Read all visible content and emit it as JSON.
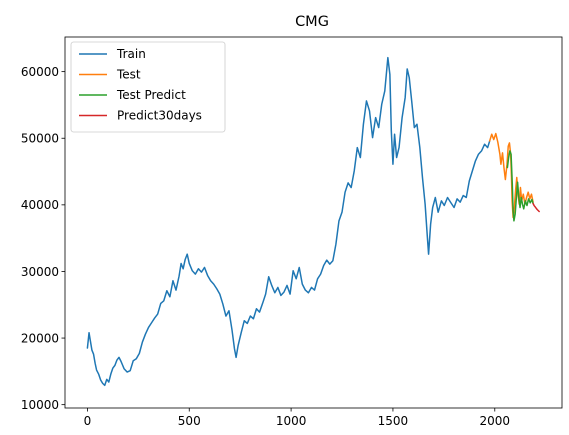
{
  "chart_data": {
    "type": "line",
    "title": "CMG",
    "xlabel": "",
    "ylabel": "",
    "xlim": [
      -110,
      2330
    ],
    "ylim": [
      9500,
      65200
    ],
    "xticks": [
      0,
      500,
      1000,
      1500,
      2000
    ],
    "xtick_labels": [
      "0",
      "500",
      "1000",
      "1500",
      "2000"
    ],
    "yticks": [
      10000,
      20000,
      30000,
      40000,
      50000,
      60000
    ],
    "ytick_labels": [
      "10000",
      "20000",
      "30000",
      "40000",
      "50000",
      "60000"
    ],
    "grid": false,
    "legend": {
      "position": "top-left"
    },
    "series": [
      {
        "name": "Train",
        "color": "#1f77b4",
        "points": [
          [
            0,
            18500
          ],
          [
            8,
            20800
          ],
          [
            15,
            19500
          ],
          [
            22,
            18200
          ],
          [
            30,
            17600
          ],
          [
            38,
            16200
          ],
          [
            45,
            15200
          ],
          [
            55,
            14600
          ],
          [
            65,
            13700
          ],
          [
            75,
            13200
          ],
          [
            85,
            12900
          ],
          [
            95,
            13800
          ],
          [
            105,
            13400
          ],
          [
            115,
            14600
          ],
          [
            125,
            15500
          ],
          [
            135,
            15900
          ],
          [
            145,
            16700
          ],
          [
            155,
            17100
          ],
          [
            165,
            16500
          ],
          [
            180,
            15400
          ],
          [
            195,
            14900
          ],
          [
            210,
            15100
          ],
          [
            225,
            16600
          ],
          [
            240,
            16900
          ],
          [
            255,
            17700
          ],
          [
            270,
            19400
          ],
          [
            285,
            20600
          ],
          [
            300,
            21600
          ],
          [
            315,
            22300
          ],
          [
            330,
            23000
          ],
          [
            345,
            23600
          ],
          [
            360,
            25200
          ],
          [
            375,
            25600
          ],
          [
            390,
            27100
          ],
          [
            405,
            26200
          ],
          [
            420,
            28600
          ],
          [
            435,
            27200
          ],
          [
            450,
            29300
          ],
          [
            460,
            31200
          ],
          [
            470,
            30400
          ],
          [
            480,
            31800
          ],
          [
            490,
            32600
          ],
          [
            500,
            31200
          ],
          [
            515,
            30100
          ],
          [
            530,
            29600
          ],
          [
            545,
            30400
          ],
          [
            560,
            29900
          ],
          [
            575,
            30600
          ],
          [
            590,
            29400
          ],
          [
            605,
            28600
          ],
          [
            620,
            28100
          ],
          [
            635,
            27400
          ],
          [
            650,
            26600
          ],
          [
            665,
            25100
          ],
          [
            680,
            23300
          ],
          [
            695,
            24100
          ],
          [
            710,
            21200
          ],
          [
            722,
            18400
          ],
          [
            730,
            17100
          ],
          [
            740,
            18900
          ],
          [
            755,
            20800
          ],
          [
            770,
            22600
          ],
          [
            785,
            22200
          ],
          [
            800,
            23300
          ],
          [
            815,
            22900
          ],
          [
            830,
            24400
          ],
          [
            845,
            23900
          ],
          [
            860,
            25200
          ],
          [
            875,
            26600
          ],
          [
            890,
            29200
          ],
          [
            905,
            27900
          ],
          [
            920,
            26800
          ],
          [
            935,
            27600
          ],
          [
            950,
            26400
          ],
          [
            965,
            26900
          ],
          [
            980,
            27900
          ],
          [
            995,
            26600
          ],
          [
            1010,
            30100
          ],
          [
            1025,
            28900
          ],
          [
            1040,
            30600
          ],
          [
            1055,
            28100
          ],
          [
            1070,
            27200
          ],
          [
            1085,
            26800
          ],
          [
            1100,
            27600
          ],
          [
            1115,
            27200
          ],
          [
            1130,
            28900
          ],
          [
            1145,
            29600
          ],
          [
            1160,
            30900
          ],
          [
            1175,
            31700
          ],
          [
            1190,
            31100
          ],
          [
            1205,
            31600
          ],
          [
            1220,
            34100
          ],
          [
            1235,
            37600
          ],
          [
            1250,
            38900
          ],
          [
            1265,
            41900
          ],
          [
            1280,
            43300
          ],
          [
            1295,
            42600
          ],
          [
            1310,
            45100
          ],
          [
            1325,
            48600
          ],
          [
            1340,
            47100
          ],
          [
            1355,
            52100
          ],
          [
            1370,
            55600
          ],
          [
            1385,
            54100
          ],
          [
            1400,
            50100
          ],
          [
            1415,
            53100
          ],
          [
            1430,
            51600
          ],
          [
            1445,
            55100
          ],
          [
            1460,
            57100
          ],
          [
            1475,
            62100
          ],
          [
            1485,
            59600
          ],
          [
            1492,
            51100
          ],
          [
            1500,
            46100
          ],
          [
            1508,
            50600
          ],
          [
            1518,
            47100
          ],
          [
            1530,
            48600
          ],
          [
            1545,
            53100
          ],
          [
            1560,
            56100
          ],
          [
            1570,
            60400
          ],
          [
            1580,
            59100
          ],
          [
            1592,
            55600
          ],
          [
            1605,
            51600
          ],
          [
            1618,
            52100
          ],
          [
            1632,
            48600
          ],
          [
            1645,
            44100
          ],
          [
            1658,
            40100
          ],
          [
            1668,
            35600
          ],
          [
            1675,
            32600
          ],
          [
            1685,
            37100
          ],
          [
            1695,
            39600
          ],
          [
            1708,
            41100
          ],
          [
            1722,
            38900
          ],
          [
            1738,
            40600
          ],
          [
            1752,
            39900
          ],
          [
            1768,
            41100
          ],
          [
            1785,
            40300
          ],
          [
            1800,
            39600
          ],
          [
            1815,
            40900
          ],
          [
            1830,
            40400
          ],
          [
            1845,
            41400
          ],
          [
            1860,
            41100
          ],
          [
            1875,
            43600
          ],
          [
            1890,
            45100
          ],
          [
            1905,
            46600
          ],
          [
            1920,
            47600
          ],
          [
            1935,
            48100
          ],
          [
            1950,
            49100
          ],
          [
            1965,
            48600
          ],
          [
            1975,
            49600
          ]
        ]
      },
      {
        "name": "Test",
        "color": "#ff7f0e",
        "points": [
          [
            1975,
            49600
          ],
          [
            1985,
            50600
          ],
          [
            1995,
            49800
          ],
          [
            2005,
            50700
          ],
          [
            2015,
            49400
          ],
          [
            2025,
            47600
          ],
          [
            2030,
            46100
          ],
          [
            2038,
            47800
          ],
          [
            2045,
            45600
          ],
          [
            2052,
            43800
          ],
          [
            2060,
            46100
          ],
          [
            2066,
            48800
          ],
          [
            2072,
            49300
          ],
          [
            2078,
            47600
          ],
          [
            2082,
            44100
          ],
          [
            2085,
            40600
          ],
          [
            2090,
            38100
          ],
          [
            2096,
            39600
          ],
          [
            2102,
            42100
          ],
          [
            2108,
            44100
          ],
          [
            2114,
            41600
          ],
          [
            2120,
            40100
          ],
          [
            2126,
            42600
          ],
          [
            2132,
            40600
          ],
          [
            2140,
            41600
          ],
          [
            2148,
            40100
          ],
          [
            2156,
            41100
          ],
          [
            2164,
            41900
          ],
          [
            2172,
            40900
          ],
          [
            2180,
            41600
          ],
          [
            2188,
            40400
          ]
        ]
      },
      {
        "name": "Test Predict",
        "color": "#2ca02c",
        "points": [
          [
            2062,
            45600
          ],
          [
            2068,
            47100
          ],
          [
            2074,
            48100
          ],
          [
            2080,
            47600
          ],
          [
            2086,
            43100
          ],
          [
            2090,
            39100
          ],
          [
            2094,
            37600
          ],
          [
            2100,
            38600
          ],
          [
            2106,
            41100
          ],
          [
            2112,
            43400
          ],
          [
            2118,
            41100
          ],
          [
            2124,
            39600
          ],
          [
            2130,
            41100
          ],
          [
            2136,
            40100
          ],
          [
            2142,
            39400
          ],
          [
            2150,
            40600
          ],
          [
            2158,
            39900
          ],
          [
            2166,
            40900
          ],
          [
            2174,
            40300
          ],
          [
            2182,
            40800
          ],
          [
            2188,
            40200
          ]
        ]
      },
      {
        "name": "Predict30days",
        "color": "#d62728",
        "points": [
          [
            2188,
            40200
          ],
          [
            2193,
            39900
          ],
          [
            2198,
            39700
          ],
          [
            2203,
            39500
          ],
          [
            2208,
            39300
          ],
          [
            2213,
            39150
          ],
          [
            2218,
            39000
          ]
        ]
      }
    ]
  }
}
